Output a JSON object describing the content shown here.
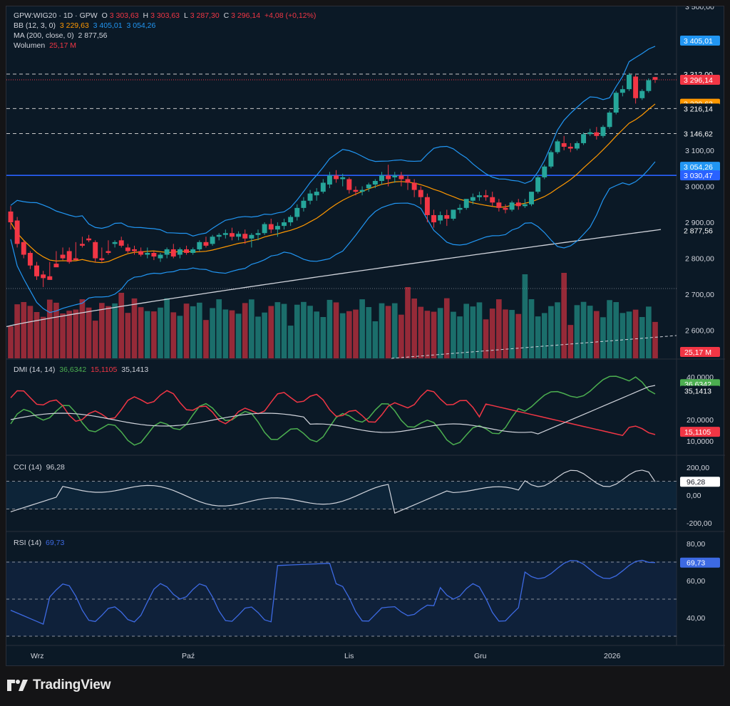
{
  "legend": {
    "symbol": "GPW:WIG20 · 1D · GPW",
    "o_label": "O",
    "o_value": "3 303,63",
    "h_label": "H",
    "h_value": "3 303,63",
    "l_label": "L",
    "l_value": "3 287,30",
    "c_label": "C",
    "c_value": "3 296,14",
    "change": "+4,08 (+0,12%)",
    "bb_label": "BB (12, 3, 0)",
    "bb_mid": "3 229,63",
    "bb_up": "3 405,01",
    "bb_low": "3 054,26",
    "ma_label": "MA (200, close, 0)",
    "ma_value": "2 877,56",
    "vol_label": "Wolumen",
    "vol_value": "25,17 M",
    "dmi_label": "DMI (14, 14)",
    "dmi_plus": "36,6342",
    "dmi_minus": "15,1105",
    "adx": "35,1413",
    "cci_label": "CCI (14)",
    "cci_value": "96,28",
    "rsi_label": "RSI (14)",
    "rsi_value": "69,73"
  },
  "colors": {
    "up": "#26a69a",
    "down": "#f23645",
    "bb_mid": "#ff9800",
    "bb_band": "#2196f3",
    "ma": "#d1d4dc",
    "hline": "#2962ff",
    "dmi_plus": "#4caf50",
    "dmi_minus": "#f23645",
    "rsi": "#3d6ae3"
  },
  "x_labels": [
    "Wrz",
    "Paź",
    "Lis",
    "Gru",
    "2026"
  ],
  "price_ticks": [
    "3 500,00",
    "3 100,00",
    "3 000,00",
    "2 900,00",
    "2 800,00",
    "2 700,00",
    "2 600,00"
  ],
  "price_tags": [
    {
      "text": "3 405,01",
      "value": 3405.01,
      "color": "#2196f3"
    },
    {
      "text": "3 312,00",
      "value": 3312.0,
      "color": "#0b1926"
    },
    {
      "text": "3 296,14",
      "value": 3296.14,
      "color": "#f23645"
    },
    {
      "text": "3 229,63",
      "value": 3229.63,
      "color": "#ff9800"
    },
    {
      "text": "3 216,14",
      "value": 3216.14,
      "color": "#0b1926"
    },
    {
      "text": "3 146,62",
      "value": 3146.62,
      "color": "#0b1926"
    },
    {
      "text": "3 054,26",
      "value": 3054.26,
      "color": "#2196f3"
    },
    {
      "text": "3 030,47",
      "value": 3030.47,
      "color": "#2962ff"
    },
    {
      "text": "2 877,56",
      "value": 2877.56,
      "color": "#0b1926"
    }
  ],
  "vol_tag": "25,17 M",
  "dmi_ticks": [
    "40,0000",
    "20,0000",
    "10,0000"
  ],
  "dmi_tags": [
    {
      "text": "36,6342",
      "color": "#4caf50"
    },
    {
      "text": "35,1413",
      "color": "#0b1926"
    },
    {
      "text": "15,1105",
      "color": "#f23645"
    }
  ],
  "cci_ticks": [
    "200,00",
    "0,00",
    "-200,00"
  ],
  "cci_tag": "96,28",
  "rsi_ticks": [
    "80,00",
    "60,00",
    "40,00"
  ],
  "rsi_tag": "69,73",
  "brand": "TradingView",
  "chart_data": {
    "type": "candlestick",
    "title": "GPW:WIG20 · 1D · GPW",
    "x_labels": [
      "Wrz",
      "Paź",
      "Lis",
      "Gru",
      "2026"
    ],
    "price_range": [
      2520,
      3500
    ],
    "horizontal_levels": [
      3312.0,
      3296.14,
      3216.14,
      3146.62,
      3030.47
    ],
    "candles": [
      [
        2930,
        2945,
        2900,
        2880
      ],
      [
        2905,
        2915,
        2840,
        2830
      ],
      [
        2845,
        2850,
        2810,
        2800
      ],
      [
        2815,
        2820,
        2780,
        2770
      ],
      [
        2780,
        2790,
        2750,
        2740
      ],
      [
        2755,
        2765,
        2745,
        2720
      ],
      [
        2750,
        2790,
        2740,
        2745
      ],
      [
        2785,
        2820,
        2775,
        2780
      ],
      [
        2810,
        2830,
        2800,
        2795
      ],
      [
        2820,
        2830,
        2790,
        2785
      ],
      [
        2800,
        2845,
        2795,
        2795
      ],
      [
        2840,
        2860,
        2835,
        2830
      ],
      [
        2855,
        2865,
        2850,
        2845
      ],
      [
        2845,
        2850,
        2800,
        2790
      ],
      [
        2800,
        2830,
        2795,
        2790
      ],
      [
        2820,
        2850,
        2815,
        2810
      ],
      [
        2840,
        2850,
        2845,
        2830
      ],
      [
        2850,
        2860,
        2835,
        2830
      ],
      [
        2830,
        2840,
        2820,
        2815
      ],
      [
        2825,
        2835,
        2820,
        2810
      ],
      [
        2820,
        2830,
        2810,
        2805
      ],
      [
        2810,
        2830,
        2815,
        2800
      ],
      [
        2815,
        2820,
        2805,
        2795
      ],
      [
        2800,
        2815,
        2810,
        2790
      ],
      [
        2810,
        2830,
        2825,
        2800
      ],
      [
        2825,
        2840,
        2805,
        2800
      ],
      [
        2810,
        2830,
        2825,
        2800
      ],
      [
        2825,
        2835,
        2815,
        2810
      ],
      [
        2815,
        2830,
        2825,
        2810
      ],
      [
        2825,
        2850,
        2845,
        2820
      ],
      [
        2845,
        2860,
        2835,
        2830
      ],
      [
        2840,
        2865,
        2860,
        2835
      ],
      [
        2860,
        2870,
        2865,
        2850
      ],
      [
        2865,
        2880,
        2870,
        2855
      ],
      [
        2870,
        2885,
        2860,
        2850
      ],
      [
        2860,
        2875,
        2868,
        2850
      ],
      [
        2868,
        2880,
        2855,
        2840
      ],
      [
        2855,
        2870,
        2865,
        2830
      ],
      [
        2865,
        2880,
        2870,
        2850
      ],
      [
        2870,
        2900,
        2895,
        2865
      ],
      [
        2895,
        2910,
        2880,
        2870
      ],
      [
        2880,
        2900,
        2890,
        2860
      ],
      [
        2890,
        2910,
        2900,
        2880
      ],
      [
        2900,
        2920,
        2915,
        2890
      ],
      [
        2915,
        2950,
        2940,
        2905
      ],
      [
        2940,
        2970,
        2960,
        2930
      ],
      [
        2960,
        2990,
        2980,
        2950
      ],
      [
        2975,
        2995,
        2985,
        2960
      ],
      [
        2985,
        3020,
        3010,
        2980
      ],
      [
        3005,
        3040,
        3030,
        2995
      ],
      [
        3030,
        3045,
        3020,
        3010
      ],
      [
        3020,
        3035,
        3025,
        3000
      ],
      [
        3020,
        3025,
        2990,
        2980
      ],
      [
        2990,
        3000,
        2985,
        2975
      ],
      [
        2985,
        3000,
        2990,
        2975
      ],
      [
        2995,
        3010,
        3005,
        2985
      ],
      [
        3005,
        3020,
        3015,
        2995
      ],
      [
        3015,
        3040,
        3030,
        3005
      ],
      [
        3030,
        3060,
        3020,
        3000
      ],
      [
        3025,
        3040,
        3030,
        3010
      ],
      [
        3030,
        3040,
        3020,
        3000
      ],
      [
        3020,
        3030,
        3010,
        2990
      ],
      [
        3010,
        3020,
        2990,
        2970
      ],
      [
        2990,
        3000,
        2970,
        2950
      ],
      [
        2970,
        2980,
        2920,
        2900
      ],
      [
        2920,
        2935,
        2900,
        2885
      ],
      [
        2905,
        2930,
        2920,
        2895
      ],
      [
        2920,
        2935,
        2910,
        2890
      ],
      [
        2910,
        2925,
        2935,
        2905
      ],
      [
        2935,
        2950,
        2940,
        2925
      ],
      [
        2940,
        2960,
        2965,
        2935
      ],
      [
        2960,
        2980,
        2970,
        2950
      ],
      [
        2970,
        2985,
        2975,
        2960
      ],
      [
        2975,
        2990,
        2970,
        2960
      ],
      [
        2970,
        2985,
        2955,
        2945
      ],
      [
        2955,
        2965,
        2940,
        2930
      ],
      [
        2940,
        2950,
        2935,
        2925
      ],
      [
        2935,
        2960,
        2955,
        2930
      ],
      [
        2955,
        2965,
        2945,
        2935
      ],
      [
        2945,
        2965,
        2950,
        2940
      ],
      [
        2950,
        2970,
        2985,
        2945
      ],
      [
        2985,
        3030,
        3025,
        2980
      ],
      [
        3025,
        3060,
        3055,
        3020
      ],
      [
        3055,
        3100,
        3095,
        3050
      ],
      [
        3095,
        3130,
        3125,
        3090
      ],
      [
        3120,
        3140,
        3110,
        3100
      ],
      [
        3110,
        3120,
        3105,
        3095
      ],
      [
        3105,
        3125,
        3120,
        3100
      ],
      [
        3120,
        3150,
        3145,
        3115
      ],
      [
        3145,
        3160,
        3150,
        3140
      ],
      [
        3150,
        3165,
        3140,
        3130
      ],
      [
        3140,
        3170,
        3165,
        3135
      ],
      [
        3165,
        3210,
        3205,
        3160
      ],
      [
        3205,
        3265,
        3260,
        3200
      ],
      [
        3260,
        3280,
        3270,
        3250
      ],
      [
        3270,
        3315,
        3310,
        3265
      ],
      [
        3305,
        3310,
        3245,
        3230
      ],
      [
        3245,
        3270,
        3265,
        3240
      ],
      [
        3265,
        3300,
        3295,
        3260
      ],
      [
        3303.63,
        3303.63,
        3296.14,
        3287.3
      ]
    ],
    "volume_unit": "M",
    "volume_last": 25.17
  }
}
